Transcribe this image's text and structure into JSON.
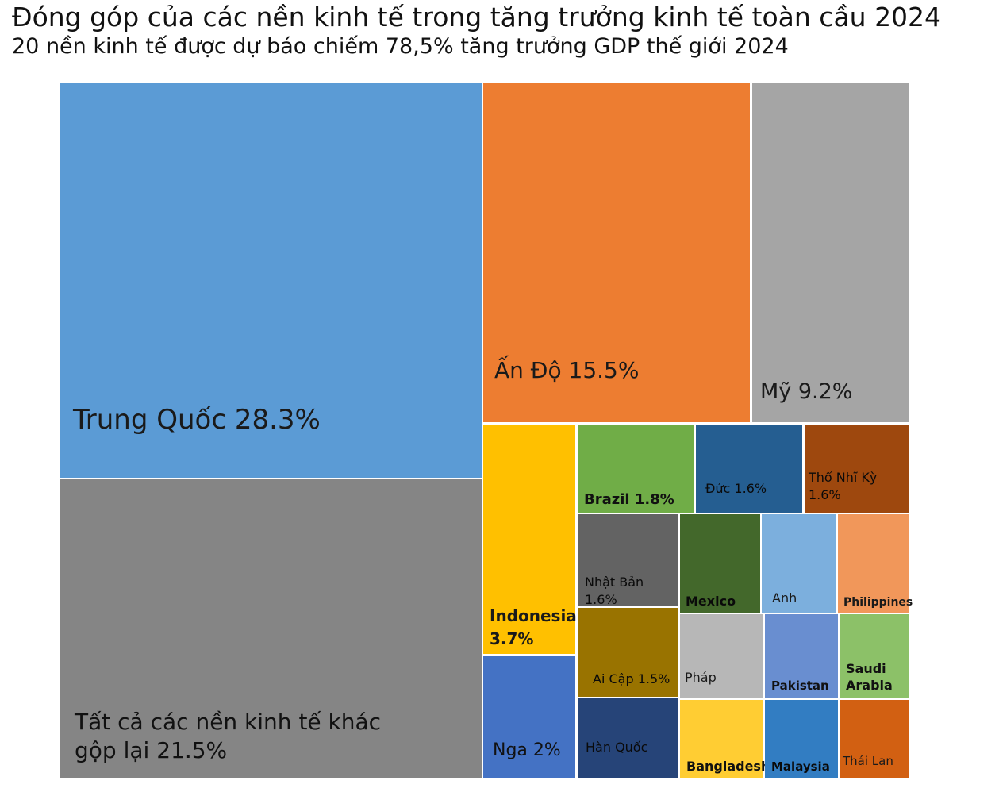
{
  "header": {
    "title": "Đóng góp của các nền kinh tế trong tăng trưởng kinh tế toàn cầu 2024",
    "subtitle": "20 nền kinh tế được dự báo chiếm 78,5% tăng trưởng GDP thế giới 2024"
  },
  "chart_data": {
    "type": "treemap",
    "title": "Đóng góp của các nền kinh tế trong tăng trưởng kinh tế toàn cầu 2024",
    "subtitle": "20 nền kinh tế được dự báo chiếm 78,5% tăng trưởng GDP thế giới 2024",
    "unit": "%",
    "items": [
      {
        "name": "Trung Quốc",
        "value": 28.3,
        "label": [
          "Trung Quốc 28.3%"
        ],
        "color": "#5b9bd5",
        "text_color": "#1a1a1a",
        "bold": false
      },
      {
        "name": "Tất cả các nền kinh tế khác gộp lại",
        "value": 21.5,
        "label": [
          "Tất cả các nền kinh tế khác",
          "gộp lại 21.5%"
        ],
        "color": "#858585",
        "text_color": "#111111",
        "bold": false
      },
      {
        "name": "Ấn Độ",
        "value": 15.5,
        "label": [
          "Ấn Độ 15.5%"
        ],
        "color": "#ed7d31",
        "text_color": "#1a1a1a",
        "bold": false
      },
      {
        "name": "Mỹ",
        "value": 9.2,
        "label": [
          "Mỹ 9.2%"
        ],
        "color": "#a5a5a5",
        "text_color": "#1a1a1a",
        "bold": false
      },
      {
        "name": "Indonesia",
        "value": 3.7,
        "label": [
          "Indonesia",
          "3.7%"
        ],
        "color": "#ffc000",
        "text_color": "#1a1a1a",
        "bold": true
      },
      {
        "name": "Nga",
        "value": 2,
        "label": [
          "Nga 2%"
        ],
        "color": "#4472c4",
        "text_color": "#111111",
        "bold": false
      },
      {
        "name": "Brazil",
        "value": 1.8,
        "label": [
          "Brazil 1.8%"
        ],
        "color": "#70ad47",
        "text_color": "#111111",
        "bold": true
      },
      {
        "name": "Đức",
        "value": 1.6,
        "label": [
          "Đức 1.6%"
        ],
        "color": "#255e91",
        "text_color": "#0a0a0a",
        "bold": false
      },
      {
        "name": "Thổ Nhĩ Kỳ",
        "value": 1.6,
        "label": [
          "Thổ Nhĩ Kỳ",
          "1.6%"
        ],
        "color": "#9e480e",
        "text_color": "#0a0a0a",
        "bold": false
      },
      {
        "name": "Nhật Bản",
        "value": 1.6,
        "label": [
          "Nhật Bản",
          "1.6%"
        ],
        "color": "#636363",
        "text_color": "#0a0a0a",
        "bold": false
      },
      {
        "name": "Mexico",
        "value": null,
        "label": [
          "Mexico"
        ],
        "color": "#43682b",
        "text_color": "#0a0a0a",
        "bold": true
      },
      {
        "name": "Anh",
        "value": null,
        "label": [
          "Anh"
        ],
        "color": "#7cafdd",
        "text_color": "#1a1a1a",
        "bold": false
      },
      {
        "name": "Philippines",
        "value": null,
        "label": [
          "Philippines"
        ],
        "color": "#f1975a",
        "text_color": "#1a1a1a",
        "bold": true
      },
      {
        "name": "Ai Cập",
        "value": 1.5,
        "label": [
          "Ai Cập 1.5%"
        ],
        "color": "#997300",
        "text_color": "#0a0a0a",
        "bold": false
      },
      {
        "name": "Pháp",
        "value": null,
        "label": [
          "Pháp"
        ],
        "color": "#b7b7b7",
        "text_color": "#1a1a1a",
        "bold": false
      },
      {
        "name": "Pakistan",
        "value": null,
        "label": [
          "Pakistan"
        ],
        "color": "#698ed0",
        "text_color": "#111111",
        "bold": true
      },
      {
        "name": "Saudi Arabia",
        "value": null,
        "label": [
          "Saudi",
          "Arabia"
        ],
        "color": "#8cc168",
        "text_color": "#111111",
        "bold": true
      },
      {
        "name": "Hàn Quốc",
        "value": null,
        "label": [
          "Hàn Quốc"
        ],
        "color": "#264478",
        "text_color": "#0a0a0a",
        "bold": false
      },
      {
        "name": "Bangladesh",
        "value": null,
        "label": [
          "Bangladesh"
        ],
        "color": "#ffcd33",
        "text_color": "#111111",
        "bold": true
      },
      {
        "name": "Malaysia",
        "value": null,
        "label": [
          "Malaysia"
        ],
        "color": "#327dc2",
        "text_color": "#0a0a0a",
        "bold": true
      },
      {
        "name": "Thái Lan",
        "value": null,
        "label": [
          "Thái Lan"
        ],
        "color": "#d26012",
        "text_color": "#1a1a1a",
        "bold": false
      }
    ]
  }
}
